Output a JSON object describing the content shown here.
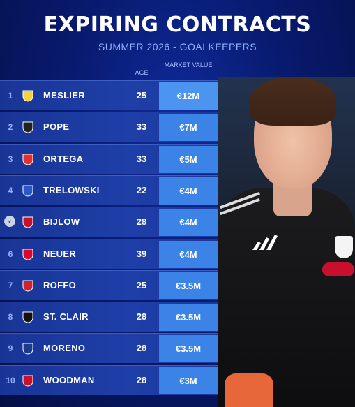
{
  "header": {
    "title": "EXPIRING CONTRACTS",
    "subtitle": "SUMMER 2026 - GOALKEEPERS"
  },
  "columns": {
    "age": "AGE",
    "market_value": "MARKET VALUE"
  },
  "colors": {
    "background": "#081a6e",
    "row": "#1f3fa8",
    "value_cell": "#3b83e6",
    "accent_text": "#8fb2ff"
  },
  "rows": [
    {
      "rank": "1",
      "name": "MESLIER",
      "age": "25",
      "value": "€12M",
      "badge_icon": "leeds-crest-icon"
    },
    {
      "rank": "2",
      "name": "POPE",
      "age": "33",
      "value": "€7M",
      "badge_icon": "newcastle-crest-icon"
    },
    {
      "rank": "3",
      "name": "ORTEGA",
      "age": "33",
      "value": "€5M",
      "badge_icon": "nottingham-forest-crest-icon"
    },
    {
      "rank": "4",
      "name": "TRELOWSKI",
      "age": "22",
      "value": "€4M",
      "badge_icon": "bochum-crest-icon"
    },
    {
      "rank": "",
      "name": "BIJLOW",
      "age": "28",
      "value": "€4M",
      "badge_icon": "genoa-crest-icon"
    },
    {
      "rank": "6",
      "name": "NEUER",
      "age": "39",
      "value": "€4M",
      "badge_icon": "bayern-crest-icon"
    },
    {
      "rank": "7",
      "name": "ROFFO",
      "age": "25",
      "value": "€3.5M",
      "badge_icon": "estudiantes-crest-icon"
    },
    {
      "rank": "8",
      "name": "ST. CLAIR",
      "age": "28",
      "value": "€3.5M",
      "badge_icon": "inter-miami-crest-icon"
    },
    {
      "rank": "9",
      "name": "MORENO",
      "age": "28",
      "value": "€3.5M",
      "badge_icon": "pachuca-crest-icon"
    },
    {
      "rank": "10",
      "name": "WOODMAN",
      "age": "28",
      "value": "€3M",
      "badge_icon": "liverpool-crest-icon"
    }
  ],
  "nav": {
    "back_icon": "chevron-left-icon",
    "back_symbol": "‹"
  }
}
